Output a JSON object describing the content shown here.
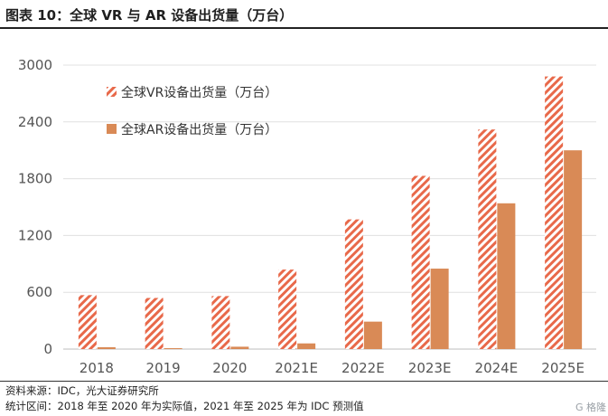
{
  "title": "图表 10：全球 VR 与 AR 设备出货量（万台）",
  "footer": {
    "source": "资料来源：IDC，光大证券研究所",
    "note": "统计区间：2018 年至 2020 年为实际值，2021 年至 2025 年为  IDC 预测值"
  },
  "watermark": "G 格隆",
  "colors": {
    "vr_stripe": "#e8694a",
    "ar_fill": "#d98a56",
    "grid": "#e0e0e0",
    "axis_text": "#555555"
  },
  "chart_data": {
    "type": "bar",
    "categories": [
      "2018",
      "2019",
      "2020",
      "2021E",
      "2022E",
      "2023E",
      "2024E",
      "2025E"
    ],
    "series": [
      {
        "name": "全球VR设备出货量（万台）",
        "pattern": "hatched",
        "values": [
          570,
          540,
          560,
          840,
          1370,
          1830,
          2320,
          2880
        ]
      },
      {
        "name": "全球AR设备出货量（万台）",
        "pattern": "solid",
        "values": [
          20,
          10,
          25,
          60,
          290,
          850,
          1540,
          2100
        ]
      }
    ],
    "y_ticks": [
      0,
      600,
      1200,
      1800,
      2400,
      3000
    ],
    "ylim": [
      0,
      3000
    ],
    "grid": true,
    "legend_position": "top-left"
  }
}
